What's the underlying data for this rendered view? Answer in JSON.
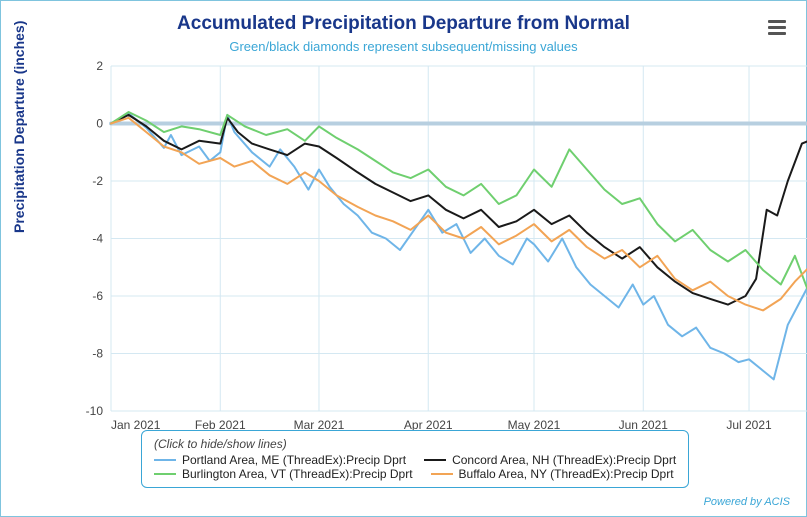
{
  "title": "Accumulated Precipitation Departure from Normal",
  "subtitle": "Green/black diamonds represent subsequent/missing values",
  "ylabel": "Precipitation Departure (inches)",
  "credit": "Powered by ACIS",
  "legend_hint": "(Click to hide/show lines)",
  "chart": {
    "type": "line",
    "background_color": "#ffffff",
    "grid_color": "#d4e8f2",
    "axis_line_color": "#b7cfe0",
    "zero_line_color": "#b7cfe0",
    "zero_line_width": 4,
    "title_fontsize": 19,
    "title_color": "#19378a",
    "subtitle_fontsize": 13,
    "subtitle_color": "#3aa6d6",
    "label_fontsize": 14,
    "tick_fontsize": 12,
    "line_width": 2,
    "xlim": [
      0,
      200
    ],
    "ylim": [
      -10,
      2
    ],
    "ytick_step": 2,
    "xticks": [
      0,
      31,
      59,
      90,
      120,
      151,
      181
    ],
    "xtick_labels": [
      "Jan 2021",
      "Feb 2021",
      "Mar 2021",
      "Apr 2021",
      "May 2021",
      "Jun 2021",
      "Jul 2021"
    ]
  },
  "series": [
    {
      "name": "Portland Area, ME (ThreadEx):Precip Dprt",
      "color": "#6fb5e8",
      "data": [
        [
          0,
          0.0
        ],
        [
          5,
          0.35
        ],
        [
          10,
          -0.15
        ],
        [
          15,
          -0.85
        ],
        [
          17,
          -0.4
        ],
        [
          20,
          -1.1
        ],
        [
          25,
          -0.8
        ],
        [
          28,
          -1.3
        ],
        [
          31,
          -1.0
        ],
        [
          33,
          0.3
        ],
        [
          35,
          -0.3
        ],
        [
          40,
          -1.0
        ],
        [
          45,
          -1.5
        ],
        [
          48,
          -0.9
        ],
        [
          52,
          -1.5
        ],
        [
          56,
          -2.3
        ],
        [
          59,
          -1.6
        ],
        [
          62,
          -2.2
        ],
        [
          66,
          -2.8
        ],
        [
          70,
          -3.2
        ],
        [
          74,
          -3.8
        ],
        [
          78,
          -4.0
        ],
        [
          82,
          -4.4
        ],
        [
          86,
          -3.7
        ],
        [
          90,
          -3.0
        ],
        [
          94,
          -3.8
        ],
        [
          98,
          -3.5
        ],
        [
          102,
          -4.5
        ],
        [
          106,
          -4.0
        ],
        [
          110,
          -4.6
        ],
        [
          114,
          -4.9
        ],
        [
          118,
          -4.0
        ],
        [
          120,
          -4.2
        ],
        [
          124,
          -4.8
        ],
        [
          128,
          -4.0
        ],
        [
          132,
          -5.0
        ],
        [
          136,
          -5.6
        ],
        [
          140,
          -6.0
        ],
        [
          144,
          -6.4
        ],
        [
          148,
          -5.6
        ],
        [
          151,
          -6.3
        ],
        [
          154,
          -6.0
        ],
        [
          158,
          -7.0
        ],
        [
          162,
          -7.4
        ],
        [
          166,
          -7.1
        ],
        [
          170,
          -7.8
        ],
        [
          174,
          -8.0
        ],
        [
          178,
          -8.3
        ],
        [
          181,
          -8.2
        ],
        [
          184,
          -8.5
        ],
        [
          188,
          -8.9
        ],
        [
          192,
          -7.0
        ],
        [
          195,
          -6.3
        ],
        [
          198,
          -5.6
        ],
        [
          200,
          -5.5
        ]
      ]
    },
    {
      "name": "Concord Area, NH (ThreadEx):Precip Dprt",
      "color": "#1a1a1a",
      "data": [
        [
          0,
          0.0
        ],
        [
          5,
          0.3
        ],
        [
          10,
          -0.1
        ],
        [
          15,
          -0.6
        ],
        [
          20,
          -0.9
        ],
        [
          25,
          -0.6
        ],
        [
          31,
          -0.7
        ],
        [
          33,
          0.2
        ],
        [
          36,
          -0.3
        ],
        [
          40,
          -0.7
        ],
        [
          45,
          -0.9
        ],
        [
          50,
          -1.1
        ],
        [
          55,
          -0.7
        ],
        [
          59,
          -0.8
        ],
        [
          64,
          -1.2
        ],
        [
          70,
          -1.7
        ],
        [
          75,
          -2.1
        ],
        [
          80,
          -2.4
        ],
        [
          85,
          -2.7
        ],
        [
          90,
          -2.5
        ],
        [
          95,
          -3.0
        ],
        [
          100,
          -3.3
        ],
        [
          105,
          -3.0
        ],
        [
          110,
          -3.6
        ],
        [
          115,
          -3.4
        ],
        [
          120,
          -3.0
        ],
        [
          125,
          -3.5
        ],
        [
          130,
          -3.2
        ],
        [
          135,
          -3.8
        ],
        [
          140,
          -4.3
        ],
        [
          145,
          -4.7
        ],
        [
          150,
          -4.3
        ],
        [
          155,
          -5.0
        ],
        [
          160,
          -5.5
        ],
        [
          165,
          -5.9
        ],
        [
          170,
          -6.1
        ],
        [
          175,
          -6.3
        ],
        [
          180,
          -6.0
        ],
        [
          183,
          -5.4
        ],
        [
          186,
          -3.0
        ],
        [
          189,
          -3.2
        ],
        [
          192,
          -2.0
        ],
        [
          196,
          -0.7
        ],
        [
          200,
          -0.5
        ]
      ]
    },
    {
      "name": "Burlington Area, VT (ThreadEx):Precip Dprt",
      "color": "#6fcf6f",
      "data": [
        [
          0,
          0.0
        ],
        [
          5,
          0.4
        ],
        [
          10,
          0.1
        ],
        [
          15,
          -0.3
        ],
        [
          20,
          -0.1
        ],
        [
          25,
          -0.2
        ],
        [
          31,
          -0.4
        ],
        [
          33,
          0.3
        ],
        [
          38,
          -0.1
        ],
        [
          44,
          -0.4
        ],
        [
          50,
          -0.2
        ],
        [
          55,
          -0.6
        ],
        [
          59,
          -0.1
        ],
        [
          64,
          -0.5
        ],
        [
          70,
          -0.9
        ],
        [
          75,
          -1.3
        ],
        [
          80,
          -1.7
        ],
        [
          85,
          -1.9
        ],
        [
          90,
          -1.6
        ],
        [
          95,
          -2.2
        ],
        [
          100,
          -2.5
        ],
        [
          105,
          -2.1
        ],
        [
          110,
          -2.8
        ],
        [
          115,
          -2.5
        ],
        [
          120,
          -1.6
        ],
        [
          125,
          -2.2
        ],
        [
          130,
          -0.9
        ],
        [
          135,
          -1.6
        ],
        [
          140,
          -2.3
        ],
        [
          145,
          -2.8
        ],
        [
          150,
          -2.6
        ],
        [
          155,
          -3.5
        ],
        [
          160,
          -4.1
        ],
        [
          165,
          -3.7
        ],
        [
          170,
          -4.4
        ],
        [
          175,
          -4.8
        ],
        [
          180,
          -4.4
        ],
        [
          185,
          -5.1
        ],
        [
          190,
          -5.6
        ],
        [
          194,
          -4.6
        ],
        [
          198,
          -5.9
        ],
        [
          200,
          -5.8
        ]
      ]
    },
    {
      "name": "Buffalo Area, NY (ThreadEx):Precip Dprt",
      "color": "#f2a455",
      "data": [
        [
          0,
          0.0
        ],
        [
          5,
          0.2
        ],
        [
          10,
          -0.3
        ],
        [
          15,
          -0.8
        ],
        [
          20,
          -1.0
        ],
        [
          25,
          -1.4
        ],
        [
          31,
          -1.2
        ],
        [
          35,
          -1.5
        ],
        [
          40,
          -1.3
        ],
        [
          45,
          -1.8
        ],
        [
          50,
          -2.1
        ],
        [
          55,
          -1.7
        ],
        [
          59,
          -2.0
        ],
        [
          64,
          -2.5
        ],
        [
          70,
          -2.9
        ],
        [
          75,
          -3.2
        ],
        [
          80,
          -3.4
        ],
        [
          85,
          -3.7
        ],
        [
          90,
          -3.2
        ],
        [
          95,
          -3.8
        ],
        [
          100,
          -4.0
        ],
        [
          105,
          -3.6
        ],
        [
          110,
          -4.2
        ],
        [
          115,
          -3.9
        ],
        [
          120,
          -3.5
        ],
        [
          125,
          -4.1
        ],
        [
          130,
          -3.7
        ],
        [
          135,
          -4.3
        ],
        [
          140,
          -4.7
        ],
        [
          145,
          -4.4
        ],
        [
          150,
          -5.0
        ],
        [
          155,
          -4.6
        ],
        [
          160,
          -5.4
        ],
        [
          165,
          -5.8
        ],
        [
          170,
          -5.5
        ],
        [
          175,
          -6.0
        ],
        [
          180,
          -6.3
        ],
        [
          185,
          -6.5
        ],
        [
          190,
          -6.1
        ],
        [
          194,
          -5.5
        ],
        [
          198,
          -5.0
        ],
        [
          200,
          -5.0
        ]
      ]
    }
  ],
  "legend_layout": [
    [
      0,
      1
    ],
    [
      2,
      3
    ]
  ]
}
